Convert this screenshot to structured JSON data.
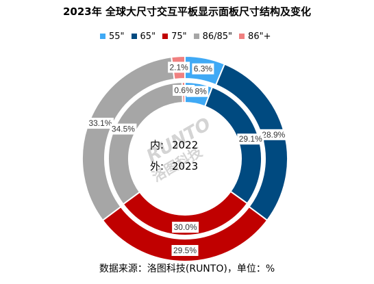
{
  "chart_data": {
    "type": "pie",
    "title": "2023年 全球大尺寸交互平板显示面板尺寸结构及变化",
    "categories": [
      "55\"",
      "65\"",
      "75\"",
      "86/85\"",
      "86\"+"
    ],
    "colors": [
      "#3fa9f5",
      "#004a80",
      "#c00000",
      "#a6a6a6",
      "#f08080"
    ],
    "series": [
      {
        "name": "外",
        "year": "2023",
        "values": [
          6.3,
          28.9,
          29.5,
          33.1,
          2.1
        ],
        "labels": [
          "6.3%",
          "28.9%",
          "29.5%",
          "33.1%",
          "2.1%"
        ]
      },
      {
        "name": "内",
        "year": "2022",
        "values": [
          5.8,
          29.1,
          30.0,
          34.5,
          0.6
        ],
        "labels": [
          "5.8%",
          "29.1%",
          "30.0%",
          "34.5%",
          "0.6%"
        ]
      }
    ],
    "legend_position": "top",
    "center_lines": [
      {
        "key": "内:",
        "value": "2022"
      },
      {
        "key": "外:",
        "value": "2023"
      }
    ]
  },
  "watermark": {
    "text_top": "RUNTO",
    "text_bottom": "洛图科技"
  },
  "source": "数据来源：洛图科技(RUNTO)，单位：%"
}
